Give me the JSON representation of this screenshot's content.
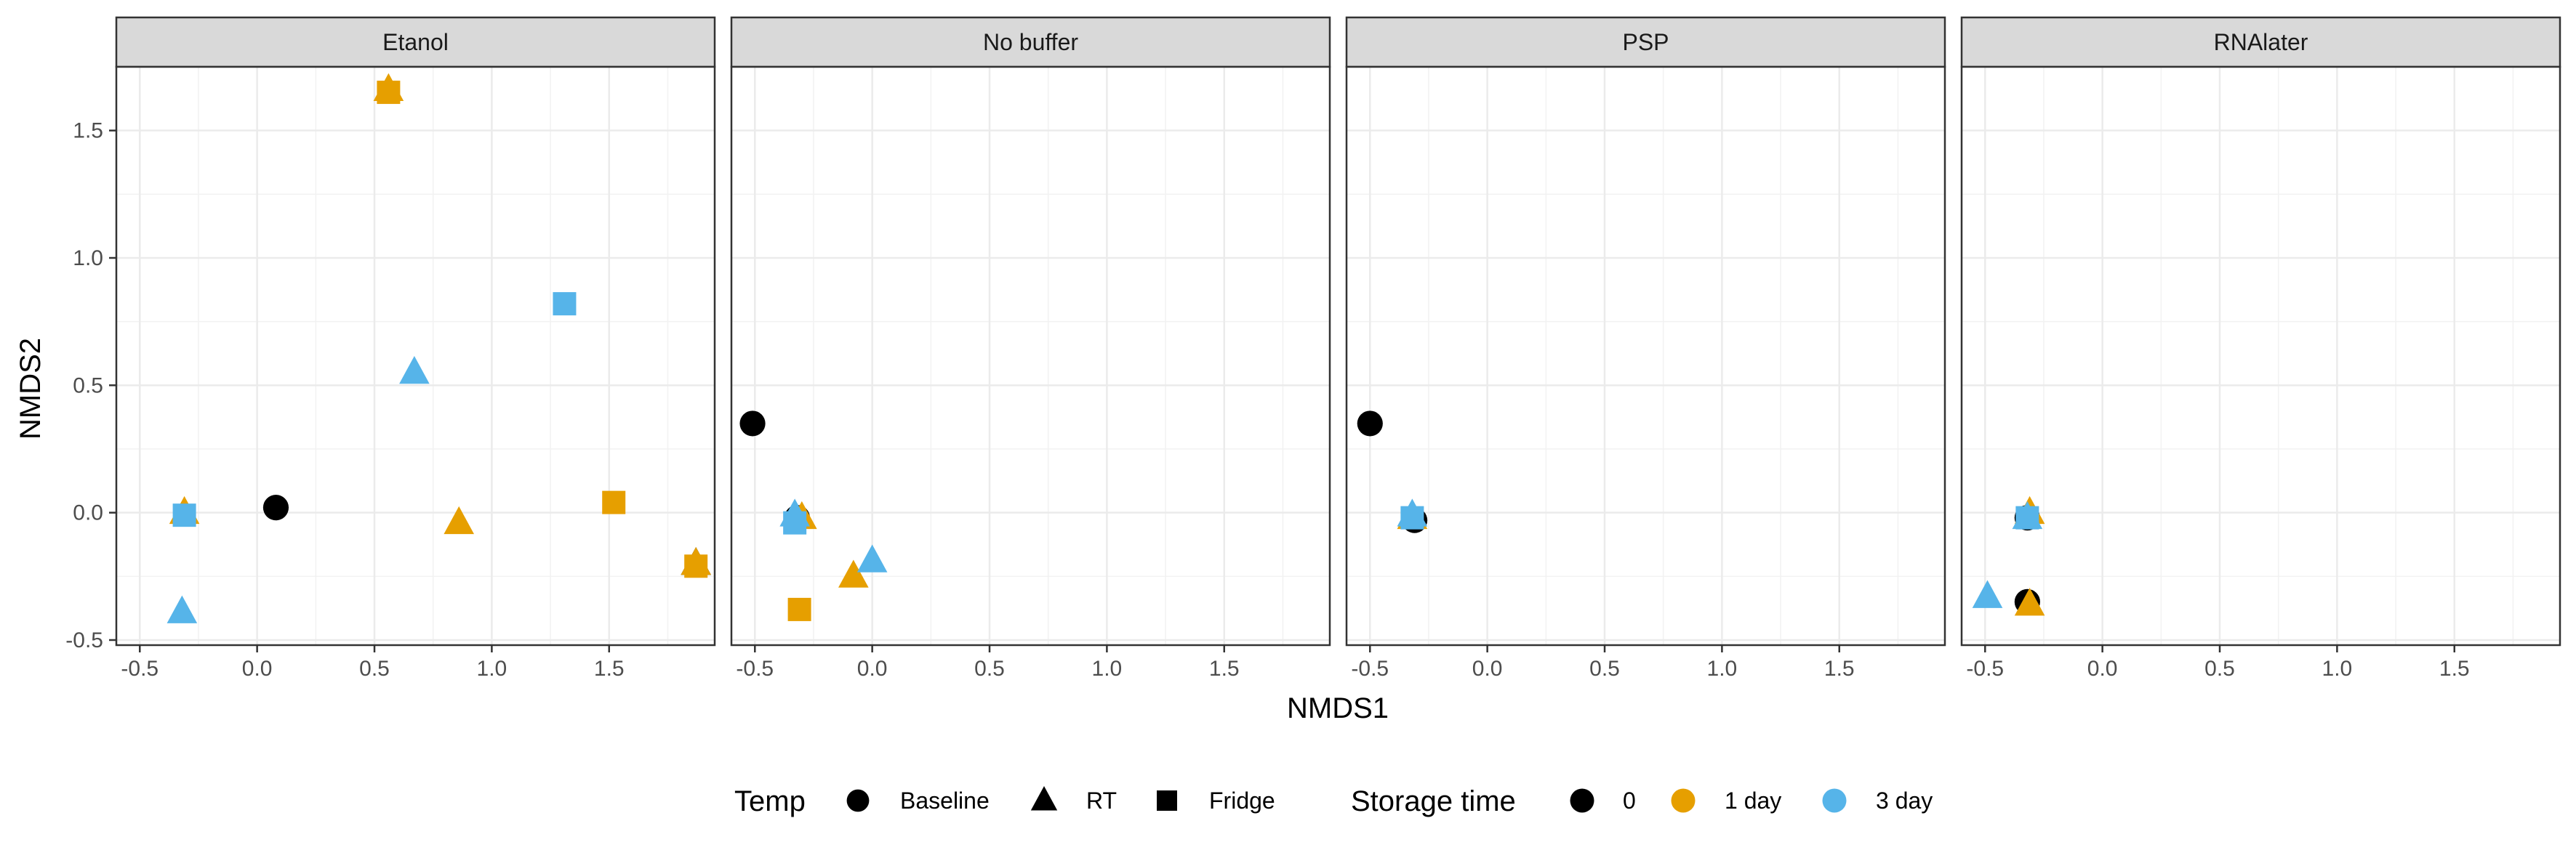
{
  "chart_data": {
    "type": "scatter",
    "xlabel": "NMDS1",
    "ylabel": "NMDS2",
    "xlim": [
      -0.6,
      1.95
    ],
    "ylim": [
      -0.52,
      1.75
    ],
    "x_ticks": [
      -0.5,
      0.0,
      0.5,
      1.0,
      1.5
    ],
    "x_tick_labels": [
      "-0.5",
      "0.0",
      "0.5",
      "1.0",
      "1.5"
    ],
    "y_ticks": [
      -0.5,
      0.0,
      0.5,
      1.0,
      1.5
    ],
    "y_tick_labels": [
      "-0.5",
      "0.0",
      "0.5",
      "1.0",
      "1.5"
    ],
    "grid": true,
    "legend_position": "bottom",
    "colors": {
      "0": "#000000",
      "1 day": "#E69F00",
      "3 day": "#56B4E9"
    },
    "shapes": {
      "Baseline": "circle",
      "RT": "triangle",
      "Fridge": "square"
    },
    "legend": {
      "temp_title": "Temp",
      "temp_items": [
        {
          "label": "Baseline",
          "shape": "circle"
        },
        {
          "label": "RT",
          "shape": "triangle"
        },
        {
          "label": "Fridge",
          "shape": "square"
        }
      ],
      "time_title": "Storage time",
      "time_items": [
        {
          "label": "0",
          "color": "#000000"
        },
        {
          "label": "1 day",
          "color": "#E69F00"
        },
        {
          "label": "3 day",
          "color": "#56B4E9"
        }
      ]
    },
    "panels": [
      {
        "name": "Etanol",
        "points": [
          {
            "x": 0.08,
            "y": 0.02,
            "temp": "Baseline",
            "time": "0"
          },
          {
            "x": 1.87,
            "y": -0.2,
            "temp": "RT",
            "time": "0"
          },
          {
            "x": -0.31,
            "y": 0.0,
            "temp": "RT",
            "time": "1 day"
          },
          {
            "x": 0.86,
            "y": -0.04,
            "temp": "RT",
            "time": "1 day"
          },
          {
            "x": 0.56,
            "y": 1.66,
            "temp": "RT",
            "time": "1 day"
          },
          {
            "x": 1.87,
            "y": -0.2,
            "temp": "RT",
            "time": "1 day"
          },
          {
            "x": 0.56,
            "y": 1.65,
            "temp": "Fridge",
            "time": "1 day"
          },
          {
            "x": 1.52,
            "y": 0.04,
            "temp": "Fridge",
            "time": "1 day"
          },
          {
            "x": 1.87,
            "y": -0.21,
            "temp": "Fridge",
            "time": "1 day"
          },
          {
            "x": 0.67,
            "y": 0.55,
            "temp": "RT",
            "time": "3 day"
          },
          {
            "x": -0.32,
            "y": -0.39,
            "temp": "RT",
            "time": "3 day"
          },
          {
            "x": 1.31,
            "y": 0.82,
            "temp": "Fridge",
            "time": "3 day"
          },
          {
            "x": -0.31,
            "y": -0.01,
            "temp": "Fridge",
            "time": "3 day"
          }
        ]
      },
      {
        "name": "No buffer",
        "points": [
          {
            "x": -0.51,
            "y": 0.35,
            "temp": "Baseline",
            "time": "0"
          },
          {
            "x": -0.32,
            "y": -0.02,
            "temp": "Baseline",
            "time": "0"
          },
          {
            "x": -0.3,
            "y": -0.02,
            "temp": "RT",
            "time": "1 day"
          },
          {
            "x": -0.08,
            "y": -0.25,
            "temp": "RT",
            "time": "1 day"
          },
          {
            "x": -0.31,
            "y": -0.38,
            "temp": "Fridge",
            "time": "1 day"
          },
          {
            "x": -0.33,
            "y": -0.01,
            "temp": "RT",
            "time": "3 day"
          },
          {
            "x": 0.0,
            "y": -0.19,
            "temp": "RT",
            "time": "3 day"
          },
          {
            "x": -0.33,
            "y": -0.04,
            "temp": "Fridge",
            "time": "3 day"
          }
        ]
      },
      {
        "name": "PSP",
        "points": [
          {
            "x": -0.5,
            "y": 0.35,
            "temp": "Baseline",
            "time": "0"
          },
          {
            "x": -0.31,
            "y": -0.03,
            "temp": "Baseline",
            "time": "0"
          },
          {
            "x": -0.32,
            "y": -0.02,
            "temp": "RT",
            "time": "1 day"
          },
          {
            "x": -0.32,
            "y": -0.01,
            "temp": "RT",
            "time": "3 day"
          },
          {
            "x": -0.32,
            "y": -0.02,
            "temp": "Fridge",
            "time": "3 day"
          }
        ]
      },
      {
        "name": "RNAlater",
        "points": [
          {
            "x": -0.32,
            "y": -0.02,
            "temp": "Baseline",
            "time": "0"
          },
          {
            "x": -0.32,
            "y": -0.35,
            "temp": "Baseline",
            "time": "0"
          },
          {
            "x": -0.31,
            "y": 0.0,
            "temp": "RT",
            "time": "1 day"
          },
          {
            "x": -0.31,
            "y": -0.36,
            "temp": "RT",
            "time": "1 day"
          },
          {
            "x": -0.49,
            "y": -0.33,
            "temp": "RT",
            "time": "3 day"
          },
          {
            "x": -0.32,
            "y": -0.02,
            "temp": "RT",
            "time": "3 day"
          },
          {
            "x": -0.32,
            "y": -0.02,
            "temp": "Fridge",
            "time": "3 day"
          }
        ]
      }
    ]
  }
}
